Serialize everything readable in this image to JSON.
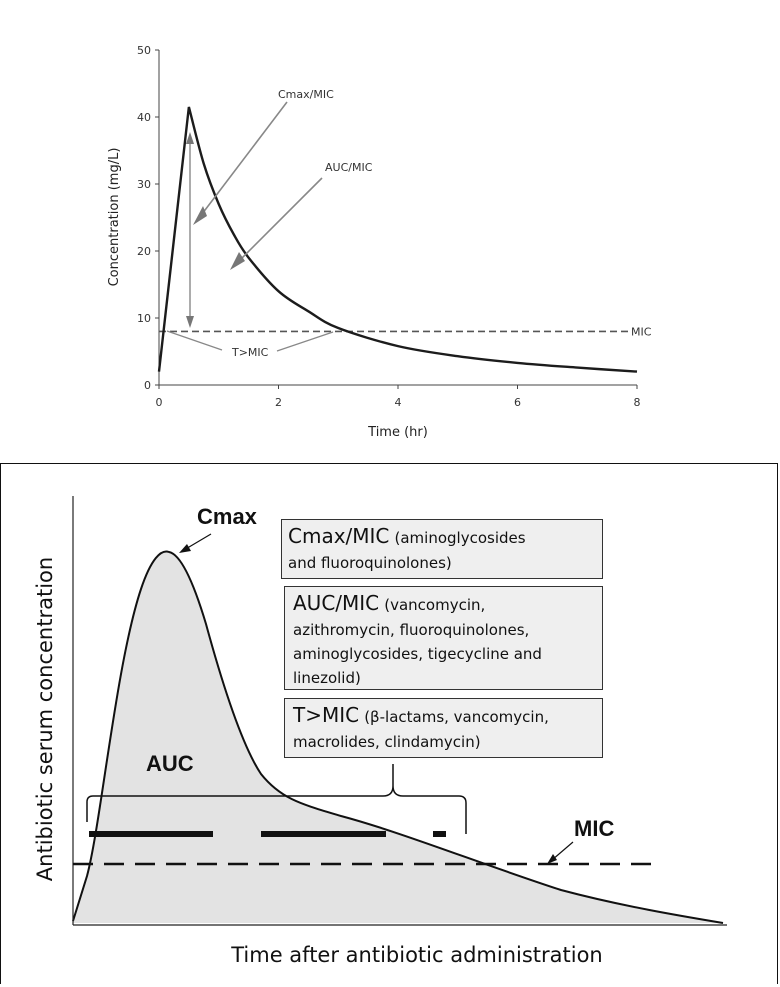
{
  "chart_data": [
    {
      "type": "line",
      "title": "",
      "xlabel": "Time (hr)",
      "ylabel": "Concentration (mg/L)",
      "xlim": [
        0,
        8
      ],
      "ylim": [
        0,
        50
      ],
      "x_ticks": [
        0,
        2,
        4,
        6,
        8
      ],
      "y_ticks": [
        0,
        10,
        20,
        30,
        40,
        50
      ],
      "grid": false,
      "series": [
        {
          "x": [
            0,
            0.5,
            0.75,
            1,
            1.25,
            1.5,
            2,
            2.5,
            3,
            4,
            5,
            6,
            7,
            8
          ],
          "y": [
            2,
            41.5,
            33,
            27,
            22.5,
            19,
            14,
            11,
            8.5,
            5.8,
            4.3,
            3.3,
            2.6,
            2
          ]
        }
      ],
      "threshold": {
        "label": "MIC",
        "y": 8,
        "style": "dashed"
      },
      "annotations": {
        "cmax": "Cmax/MIC",
        "auc": "AUC/MIC",
        "tmic": "T>MIC"
      }
    },
    {
      "type": "area",
      "xlabel": "Time after antibiotic administration",
      "ylabel": "Antibiotic serum concentration",
      "peak_label": "Cmax",
      "area_label": "AUC",
      "mic_label": "MIC",
      "fill_color": "#e3e3e3",
      "boxes": [
        {
          "head": "Cmax/MIC",
          "body": "(aminoglycosides",
          "body2": "and fluoroquinolones)"
        },
        {
          "head": "AUC/MIC",
          "body": "(vancomycin,",
          "body2": "azithromycin,  fluoroquinolones,",
          "body3": "aminoglycosides, tigecycline and",
          "body4": "linezolid)"
        },
        {
          "head": "T>MIC",
          "body": "(β-lactams, vancomycin,",
          "body2": "macrolides, clindamycin)"
        }
      ]
    }
  ]
}
